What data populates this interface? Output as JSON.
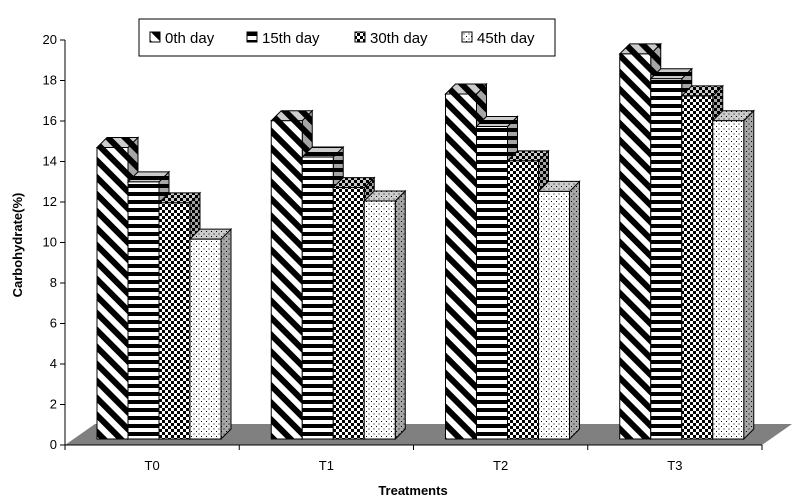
{
  "chart_data": {
    "type": "bar",
    "categories": [
      "T0",
      "T1",
      "T2",
      "T3"
    ],
    "series": [
      {
        "name": "0th day",
        "values": [
          15.0,
          16.4,
          17.8,
          19.9
        ],
        "pattern": "diagonal"
      },
      {
        "name": "15th day",
        "values": [
          13.2,
          14.5,
          16.1,
          18.6
        ],
        "pattern": "horizontal"
      },
      {
        "name": "30th day",
        "values": [
          12.1,
          12.9,
          14.3,
          17.7
        ],
        "pattern": "checker"
      },
      {
        "name": "45th day",
        "values": [
          10.2,
          12.2,
          12.7,
          16.4
        ],
        "pattern": "dots"
      }
    ],
    "xlabel": "Treatments",
    "ylabel": "Carbohydrate(%)",
    "ylim": [
      0,
      20
    ],
    "yticks": [
      "0",
      "2",
      "4",
      "6",
      "8",
      "10",
      "12",
      "14",
      "16",
      "18",
      "20"
    ],
    "grid": false,
    "legend_position": "top",
    "style": "3d-bar-black-and-white-patterns"
  }
}
